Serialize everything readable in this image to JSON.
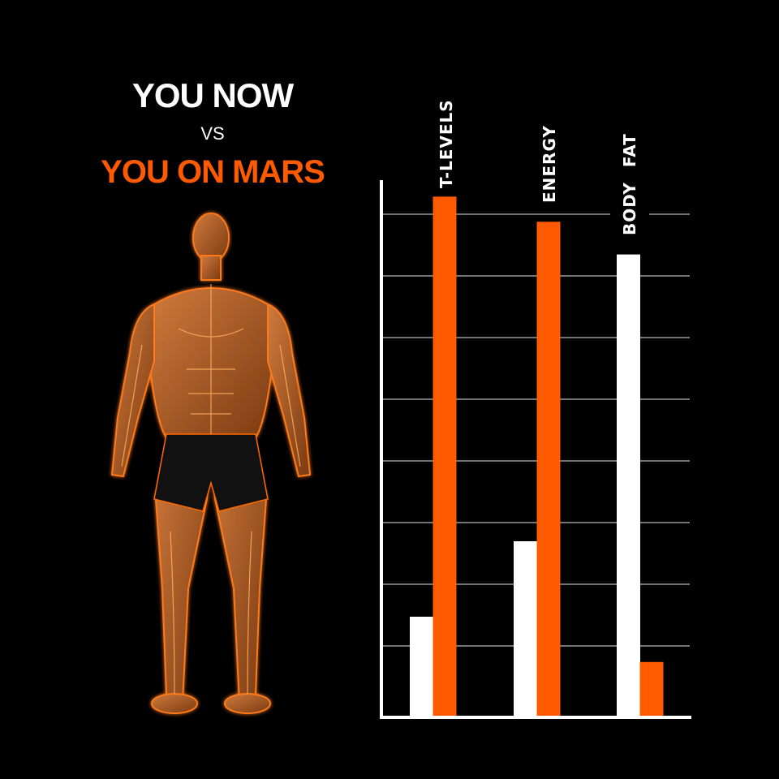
{
  "title": {
    "line1": "YOU NOW",
    "vs": "VS",
    "line2": "YOU ON MARS"
  },
  "colors": {
    "now": "#ffffff",
    "mars": "#ff5a00",
    "background": "#000000",
    "grid": "#9a9a9a"
  },
  "figure": {
    "icon": "glowing-muscular-man-illustration"
  },
  "chart_data": {
    "type": "bar",
    "categories": [
      "T-LEVELS",
      "ENERGY",
      "BODY FAT"
    ],
    "series": [
      {
        "color": "#ffffff",
        "values": [
          20,
          35,
          92
        ]
      },
      {
        "color": "#ff5a00",
        "values": [
          103.5,
          98.5,
          11
        ]
      }
    ],
    "ylim": [
      0,
      100
    ],
    "y_tick_labels": false,
    "grid": true,
    "gridline_count": 8,
    "legend": "none",
    "category_label_orientation": "vertical"
  }
}
